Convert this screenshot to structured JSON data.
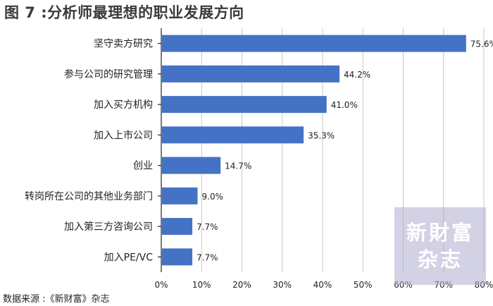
{
  "title": "图 7 :分析师最理想的职业发展方向",
  "source": "数据来源 :《新财富》杂志",
  "watermark": [
    "新財富",
    "杂志"
  ],
  "colors": {
    "bar": "#4472c4",
    "grid": "#c8c8c8",
    "watermark": "#afaccd"
  },
  "chart_data": {
    "type": "bar",
    "orientation": "horizontal",
    "categories": [
      "坚守卖方研究",
      "参与公司的研究管理",
      "加入买方机构",
      "加入上市公司",
      "创业",
      "转岗所在公司的其他业务部门",
      "加入第三方咨询公司",
      "加入PE/VC"
    ],
    "values": [
      75.6,
      44.2,
      41.0,
      35.3,
      14.7,
      9.0,
      7.7,
      7.7
    ],
    "value_labels": [
      "75.6%",
      "44.2%",
      "41.0%",
      "35.3%",
      "14.7%",
      "9.0%",
      "7.7%",
      "7.7%"
    ],
    "xlim": [
      0,
      80
    ],
    "xticks": [
      0,
      10,
      20,
      30,
      40,
      50,
      60,
      70,
      80
    ],
    "xtick_labels": [
      "0%",
      "10%",
      "20%",
      "30%",
      "40%",
      "50%",
      "60%",
      "70%",
      "80%"
    ],
    "grid": true,
    "legend": "none"
  }
}
